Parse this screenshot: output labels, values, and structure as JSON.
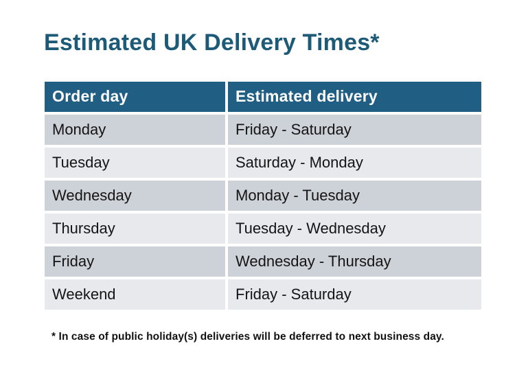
{
  "title": "Estimated UK Delivery Times*",
  "table": {
    "columns": [
      "Order day",
      "Estimated delivery"
    ],
    "rows": [
      [
        "Monday",
        "Friday - Saturday"
      ],
      [
        "Tuesday",
        "Saturday - Monday"
      ],
      [
        "Wednesday",
        "Monday - Tuesday"
      ],
      [
        "Thursday",
        "Tuesday - Wednesday"
      ],
      [
        "Friday",
        "Wednesday - Thursday"
      ],
      [
        "Weekend",
        "Friday - Saturday"
      ]
    ]
  },
  "footnote": "* In case of public holiday(s) deliveries will be deferred to next business day.",
  "colors": {
    "title_text": "#1C5A78",
    "header_bg": "#215E84",
    "header_text": "#FFFFFF",
    "row_odd_bg": "#CDD1D8",
    "row_even_bg": "#E7E9EC",
    "body_text": "#141414",
    "page_bg": "#FFFFFF"
  }
}
